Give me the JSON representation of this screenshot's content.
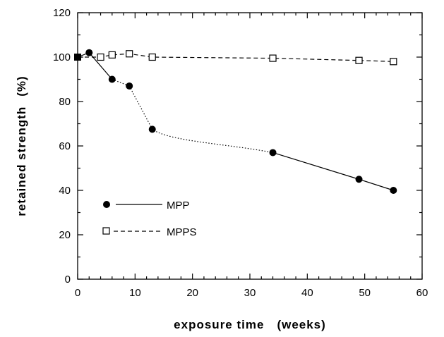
{
  "chart_data": {
    "type": "line",
    "title": "",
    "xlabel": "exposure time",
    "xunit": "(weeks)",
    "ylabel": "retained strength",
    "yunit": "(%)",
    "xlim": [
      0,
      60
    ],
    "ylim": [
      0,
      120
    ],
    "xticks": [
      0,
      10,
      20,
      30,
      40,
      50,
      60
    ],
    "yticks": [
      0,
      20,
      40,
      60,
      80,
      100,
      120
    ],
    "grid": false,
    "legend": "lower-left",
    "series": [
      {
        "name": "MPP",
        "marker": "filled-circle",
        "line": "solid",
        "x": [
          0,
          2,
          6,
          9,
          13,
          34,
          49,
          55
        ],
        "y": [
          100,
          102,
          90,
          87,
          67.5,
          57,
          45,
          40
        ]
      },
      {
        "name": "MPPS",
        "marker": "open-square",
        "line": "dashed",
        "x": [
          0,
          4,
          6,
          9,
          13,
          34,
          49,
          55
        ],
        "y": [
          100,
          100,
          101,
          101.5,
          100,
          99.5,
          98.5,
          98
        ]
      }
    ]
  }
}
